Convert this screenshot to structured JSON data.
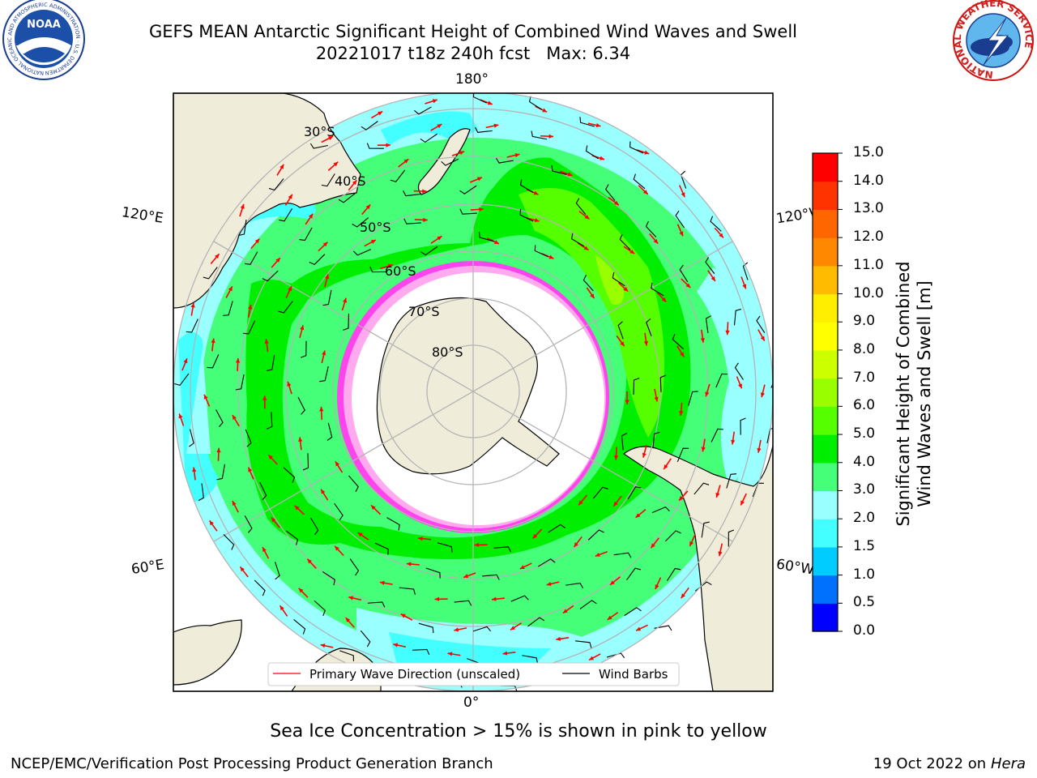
{
  "header": {
    "title_line1": "GEFS MEAN Antarctic Significant Height of Combined Wind Waves and Swell",
    "title_line2": "20221017 t18z 240h fcst   Max: 6.34",
    "noaa_logo_text": "NOAA",
    "noaa_ring_text": "NATIONAL OCEANIC AND ATMOSPHERIC ADMINISTRATION · U.S. DEPARTMENT OF COMMERCE",
    "nws_ring_text": "NATIONAL WEATHER SERVICE"
  },
  "map": {
    "lon_labels": {
      "top": "180°",
      "bottom": "0°",
      "upper_left": "120°E",
      "upper_right": "120°W",
      "lower_left": "60°E",
      "lower_right": "60°W"
    },
    "lat_labels": [
      "30°S",
      "40°S",
      "50°S",
      "60°S",
      "70°S",
      "80°S"
    ],
    "legend": {
      "wave_direction": "Primary Wave Direction (unscaled)",
      "wind_barbs": "Wind Barbs"
    },
    "colors": {
      "land": "#efedd9",
      "wave_arrow": "#ff0000",
      "wind_barb": "#000000",
      "grid": "#b4b4b4",
      "ice": "#ff44ee"
    }
  },
  "colorbar": {
    "label_line1": "Significant Height of Combined",
    "label_line2": "Wind Waves and Swell [m]",
    "ticks": [
      "0.0",
      "0.5",
      "1.0",
      "1.5",
      "2.0",
      "3.0",
      "4.0",
      "5.0",
      "6.0",
      "7.0",
      "8.0",
      "9.0",
      "10.0",
      "11.0",
      "12.0",
      "13.0",
      "14.0",
      "15.0"
    ],
    "colors": [
      "#0000ff",
      "#0070ff",
      "#00ccff",
      "#44ffff",
      "#99ffff",
      "#44ff77",
      "#00ee00",
      "#55ff00",
      "#99ff00",
      "#ccff00",
      "#ffff00",
      "#ffee00",
      "#ffbb00",
      "#ff8800",
      "#ff6600",
      "#ff3300",
      "#ff0000"
    ]
  },
  "footer": {
    "ice_note": "Sea Ice Concentration > 15% is shown in pink to yellow",
    "left": "NCEP/EMC/Verification Post Processing Product Generation Branch",
    "right_date": "19 Oct 2022 on",
    "right_machine": "Hera"
  }
}
